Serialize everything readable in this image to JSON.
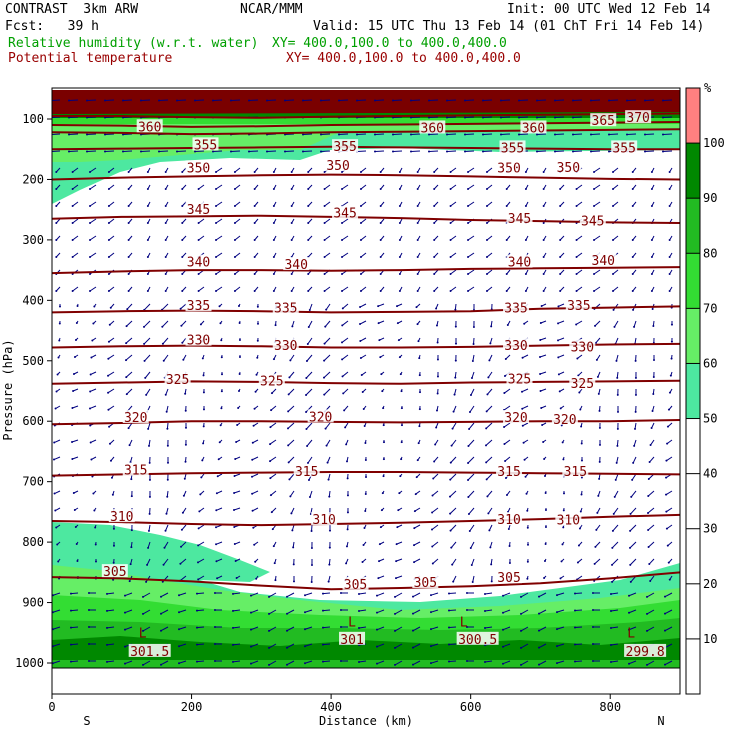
{
  "header": {
    "model": "CONTRAST  3km ARW",
    "org": "NCAR/MMM",
    "init": "Init: 00 UTC Wed 12 Feb 14",
    "fcst": "Fcst:   39 h",
    "valid": "Valid: 15 UTC Thu 13 Feb 14 (01 ChT Fri 14 Feb 14)",
    "field1": "Relative humidity (w.r.t. water)",
    "xy1": "XY= 400.0,100.0 to 400.0,400.0",
    "field2": "Potential temperature",
    "xy2": "XY= 400.0,100.0 to 400.0,400.0"
  },
  "colors": {
    "rh_50": "#4de8a0",
    "rh_60": "#66ee66",
    "rh_70": "#33dd33",
    "rh_80": "#22bb22",
    "rh_90": "#008800",
    "rh_100": "#ff8080",
    "theta_line": "#800000",
    "wind": "#000080",
    "text_green": "#00a000",
    "text_red": "#990000"
  },
  "chart_data": {
    "type": "cross-section",
    "xlabel": "Distance (km)",
    "ylabel": "Pressure (hPa)",
    "xlim": [
      0,
      900
    ],
    "ylim": [
      1040,
      50
    ],
    "x_ticks": [
      "0",
      "200",
      "400",
      "600",
      "800"
    ],
    "x_tick_values": [
      0,
      200,
      400,
      600,
      800
    ],
    "y_ticks": [
      "100",
      "200",
      "300",
      "400",
      "500",
      "600",
      "700",
      "800",
      "900",
      "1000"
    ],
    "y_tick_values": [
      100,
      200,
      300,
      400,
      500,
      600,
      700,
      800,
      900,
      1000
    ],
    "end_labels": [
      "S",
      "N"
    ],
    "colorbar": {
      "unit": "%",
      "labels": [
        "10",
        "20",
        "30",
        "40",
        "50",
        "60",
        "70",
        "80",
        "90",
        "100"
      ],
      "values": [
        10,
        20,
        30,
        40,
        50,
        60,
        70,
        80,
        90,
        100
      ]
    },
    "isentropes": [
      {
        "theta": 370,
        "pressures": [
          95,
          95,
          97,
          98,
          96,
          95,
          94,
          93,
          92,
          91
        ]
      },
      {
        "theta": 365,
        "pressures": [
          110,
          111,
          113,
          112,
          110,
          109,
          108,
          107,
          106,
          105
        ]
      },
      {
        "theta": 360,
        "pressures": [
          122,
          123,
          125,
          124,
          122,
          121,
          120,
          119,
          118,
          117
        ]
      },
      {
        "theta": 355,
        "pressures": [
          150,
          149,
          148,
          147,
          146,
          147,
          148,
          149,
          150,
          150
        ]
      },
      {
        "theta": 350,
        "pressures": [
          200,
          197,
          195,
          193,
          192,
          193,
          195,
          197,
          199,
          200
        ]
      },
      {
        "theta": 345,
        "pressures": [
          265,
          262,
          261,
          260,
          262,
          264,
          267,
          269,
          271,
          272
        ]
      },
      {
        "theta": 340,
        "pressures": [
          355,
          352,
          350,
          350,
          351,
          350,
          348,
          347,
          346,
          345
        ]
      },
      {
        "theta": 335,
        "pressures": [
          420,
          418,
          417,
          418,
          420,
          419,
          418,
          414,
          412,
          410
        ]
      },
      {
        "theta": 330,
        "pressures": [
          478,
          476,
          475,
          476,
          478,
          478,
          477,
          475,
          473,
          472
        ]
      },
      {
        "theta": 325,
        "pressures": [
          538,
          536,
          534,
          535,
          537,
          538,
          536,
          535,
          534,
          533
        ]
      },
      {
        "theta": 320,
        "pressures": [
          605,
          603,
          600,
          600,
          601,
          602,
          601,
          600,
          600,
          598
        ]
      },
      {
        "theta": 315,
        "pressures": [
          690,
          688,
          686,
          685,
          684,
          684,
          685,
          686,
          687,
          688
        ]
      },
      {
        "theta": 310,
        "pressures": [
          765,
          767,
          770,
          772,
          770,
          768,
          765,
          762,
          758,
          755
        ]
      },
      {
        "theta": 305,
        "pressures": [
          858,
          860,
          865,
          872,
          878,
          876,
          873,
          868,
          860,
          850
        ]
      }
    ],
    "contour_labels": [
      {
        "text": "370",
        "x": 840,
        "p": 97
      },
      {
        "text": "365",
        "x": 790,
        "p": 102
      },
      {
        "text": "360",
        "x": 140,
        "p": 112
      },
      {
        "text": "360",
        "x": 545,
        "p": 114
      },
      {
        "text": "360",
        "x": 690,
        "p": 114
      },
      {
        "text": "355",
        "x": 220,
        "p": 142
      },
      {
        "text": "355",
        "x": 420,
        "p": 145
      },
      {
        "text": "355",
        "x": 660,
        "p": 147
      },
      {
        "text": "355",
        "x": 820,
        "p": 147
      },
      {
        "text": "350",
        "x": 210,
        "p": 180
      },
      {
        "text": "350",
        "x": 410,
        "p": 176
      },
      {
        "text": "350",
        "x": 655,
        "p": 180
      },
      {
        "text": "350",
        "x": 740,
        "p": 179
      },
      {
        "text": "345",
        "x": 210,
        "p": 249
      },
      {
        "text": "345",
        "x": 420,
        "p": 255
      },
      {
        "text": "345",
        "x": 670,
        "p": 264
      },
      {
        "text": "345",
        "x": 775,
        "p": 268
      },
      {
        "text": "340",
        "x": 210,
        "p": 336
      },
      {
        "text": "340",
        "x": 350,
        "p": 340
      },
      {
        "text": "340",
        "x": 670,
        "p": 336
      },
      {
        "text": "340",
        "x": 790,
        "p": 333
      },
      {
        "text": "335",
        "x": 210,
        "p": 408
      },
      {
        "text": "335",
        "x": 335,
        "p": 412
      },
      {
        "text": "335",
        "x": 665,
        "p": 412
      },
      {
        "text": "335",
        "x": 755,
        "p": 408
      },
      {
        "text": "330",
        "x": 210,
        "p": 465
      },
      {
        "text": "330",
        "x": 335,
        "p": 474
      },
      {
        "text": "330",
        "x": 665,
        "p": 474
      },
      {
        "text": "330",
        "x": 760,
        "p": 476
      },
      {
        "text": "325",
        "x": 180,
        "p": 530
      },
      {
        "text": "325",
        "x": 315,
        "p": 533
      },
      {
        "text": "325",
        "x": 670,
        "p": 529
      },
      {
        "text": "325",
        "x": 760,
        "p": 537
      },
      {
        "text": "320",
        "x": 120,
        "p": 593
      },
      {
        "text": "320",
        "x": 385,
        "p": 592
      },
      {
        "text": "320",
        "x": 665,
        "p": 593
      },
      {
        "text": "320",
        "x": 735,
        "p": 596
      },
      {
        "text": "315",
        "x": 120,
        "p": 680
      },
      {
        "text": "315",
        "x": 365,
        "p": 682
      },
      {
        "text": "315",
        "x": 655,
        "p": 682
      },
      {
        "text": "315",
        "x": 750,
        "p": 682
      },
      {
        "text": "310",
        "x": 100,
        "p": 757
      },
      {
        "text": "310",
        "x": 390,
        "p": 762
      },
      {
        "text": "310",
        "x": 655,
        "p": 762
      },
      {
        "text": "310",
        "x": 740,
        "p": 763
      },
      {
        "text": "305",
        "x": 90,
        "p": 848
      },
      {
        "text": "305",
        "x": 435,
        "p": 869
      },
      {
        "text": "305",
        "x": 535,
        "p": 866
      },
      {
        "text": "305",
        "x": 655,
        "p": 858
      },
      {
        "text": "301.5",
        "x": 140,
        "p": 980
      },
      {
        "text": "301",
        "x": 430,
        "p": 960
      },
      {
        "text": "300.5",
        "x": 610,
        "p": 960
      },
      {
        "text": "299.8",
        "x": 850,
        "p": 980
      }
    ],
    "low_markers": [
      {
        "text": "L",
        "x": 130,
        "p": 958
      },
      {
        "text": "L",
        "x": 430,
        "p": 940
      },
      {
        "text": "L",
        "x": 590,
        "p": 940
      },
      {
        "text": "L",
        "x": 830,
        "p": 958
      }
    ]
  }
}
